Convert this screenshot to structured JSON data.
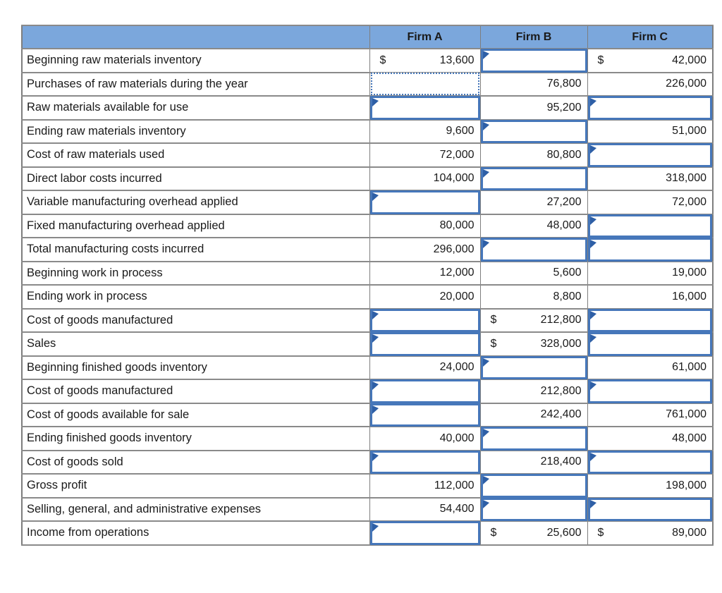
{
  "table": {
    "columns": [
      "",
      "Firm A",
      "Firm B",
      "Firm C"
    ],
    "colors": {
      "header_bg": "#7BA7DC",
      "input_border": "#4677BA",
      "marker_triangle": "#2E5FA6",
      "grid_line": "#7e7e7e"
    },
    "rows": [
      {
        "label": "Beginning raw materials inventory",
        "cells": [
          {
            "state": "value",
            "prefix": "$",
            "text": "13,600"
          },
          {
            "state": "input"
          },
          {
            "state": "value",
            "prefix": "$",
            "text": "42,000"
          }
        ]
      },
      {
        "label": "Purchases of raw materials during the year",
        "cells": [
          {
            "state": "selected"
          },
          {
            "state": "value",
            "text": "76,800"
          },
          {
            "state": "value",
            "text": "226,000"
          }
        ]
      },
      {
        "label": "Raw materials available for use",
        "cells": [
          {
            "state": "input"
          },
          {
            "state": "value",
            "text": "95,200"
          },
          {
            "state": "input"
          }
        ]
      },
      {
        "label": "Ending raw materials inventory",
        "cells": [
          {
            "state": "value",
            "text": "9,600"
          },
          {
            "state": "input"
          },
          {
            "state": "value",
            "text": "51,000"
          }
        ]
      },
      {
        "label": "Cost of raw materials used",
        "cells": [
          {
            "state": "value",
            "text": "72,000"
          },
          {
            "state": "value",
            "text": "80,800"
          },
          {
            "state": "input"
          }
        ]
      },
      {
        "label": "Direct labor costs incurred",
        "cells": [
          {
            "state": "value",
            "text": "104,000"
          },
          {
            "state": "input"
          },
          {
            "state": "value",
            "text": "318,000"
          }
        ]
      },
      {
        "label": "Variable manufacturing overhead applied",
        "cells": [
          {
            "state": "input"
          },
          {
            "state": "value",
            "text": "27,200"
          },
          {
            "state": "value",
            "text": "72,000"
          }
        ]
      },
      {
        "label": "Fixed manufacturing overhead applied",
        "cells": [
          {
            "state": "value",
            "text": "80,000"
          },
          {
            "state": "value",
            "text": "48,000"
          },
          {
            "state": "input"
          }
        ]
      },
      {
        "label": "Total manufacturing costs incurred",
        "cells": [
          {
            "state": "value",
            "text": "296,000"
          },
          {
            "state": "input"
          },
          {
            "state": "input"
          }
        ]
      },
      {
        "label": "Beginning work in process",
        "cells": [
          {
            "state": "value",
            "text": "12,000"
          },
          {
            "state": "value",
            "text": "5,600"
          },
          {
            "state": "value",
            "text": "19,000"
          }
        ]
      },
      {
        "label": "Ending work in process",
        "cells": [
          {
            "state": "value",
            "text": "20,000"
          },
          {
            "state": "value",
            "text": "8,800"
          },
          {
            "state": "value",
            "text": "16,000"
          }
        ]
      },
      {
        "label": "Cost of goods manufactured",
        "cells": [
          {
            "state": "input"
          },
          {
            "state": "value",
            "prefix": "$",
            "text": "212,800"
          },
          {
            "state": "input"
          }
        ]
      },
      {
        "label": "Sales",
        "cells": [
          {
            "state": "input"
          },
          {
            "state": "value",
            "prefix": "$",
            "text": "328,000"
          },
          {
            "state": "input"
          }
        ]
      },
      {
        "label": "Beginning finished goods inventory",
        "cells": [
          {
            "state": "value",
            "text": "24,000"
          },
          {
            "state": "input"
          },
          {
            "state": "value",
            "text": "61,000"
          }
        ]
      },
      {
        "label": "Cost of goods manufactured",
        "cells": [
          {
            "state": "input"
          },
          {
            "state": "value",
            "text": "212,800"
          },
          {
            "state": "input"
          }
        ]
      },
      {
        "label": "Cost of goods available for sale",
        "cells": [
          {
            "state": "input"
          },
          {
            "state": "value",
            "text": "242,400"
          },
          {
            "state": "value",
            "text": "761,000"
          }
        ]
      },
      {
        "label": "Ending finished goods inventory",
        "cells": [
          {
            "state": "value",
            "text": "40,000"
          },
          {
            "state": "input"
          },
          {
            "state": "value",
            "text": "48,000"
          }
        ]
      },
      {
        "label": "Cost of goods sold",
        "cells": [
          {
            "state": "input"
          },
          {
            "state": "value",
            "text": "218,400"
          },
          {
            "state": "input"
          }
        ]
      },
      {
        "label": "Gross profit",
        "cells": [
          {
            "state": "value",
            "text": "112,000"
          },
          {
            "state": "input"
          },
          {
            "state": "value",
            "text": "198,000"
          }
        ]
      },
      {
        "label": "Selling, general, and administrative expenses",
        "cells": [
          {
            "state": "value",
            "text": "54,400"
          },
          {
            "state": "input"
          },
          {
            "state": "input"
          }
        ]
      },
      {
        "label": "Income from operations",
        "cells": [
          {
            "state": "input"
          },
          {
            "state": "value",
            "prefix": "$",
            "text": "25,600"
          },
          {
            "state": "value",
            "prefix": "$",
            "text": "89,000"
          }
        ]
      }
    ]
  }
}
